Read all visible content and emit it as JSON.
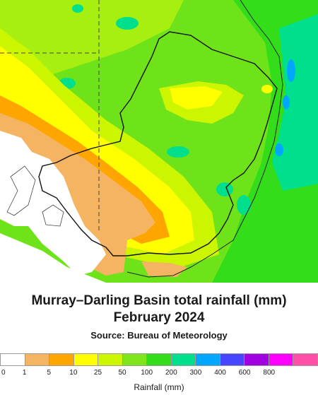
{
  "map": {
    "title_line1": "Murray–Darling Basin total rainfall (mm)",
    "title_line2": "February 2024",
    "source": "Source: Bureau of Meteorology"
  },
  "legend": {
    "label": "Rainfall (mm)",
    "ticks": [
      "0",
      "1",
      "5",
      "10",
      "25",
      "50",
      "100",
      "200",
      "300",
      "400",
      "600",
      "800"
    ],
    "colors": [
      "#ffffff",
      "#f5b461",
      "#ffa500",
      "#ffff00",
      "#ccf500",
      "#7fe51a",
      "#33dd1a",
      "#00e08c",
      "#00a6ff",
      "#4646ff",
      "#a100e0",
      "#ff00ff",
      "#ff4fa6"
    ]
  }
}
